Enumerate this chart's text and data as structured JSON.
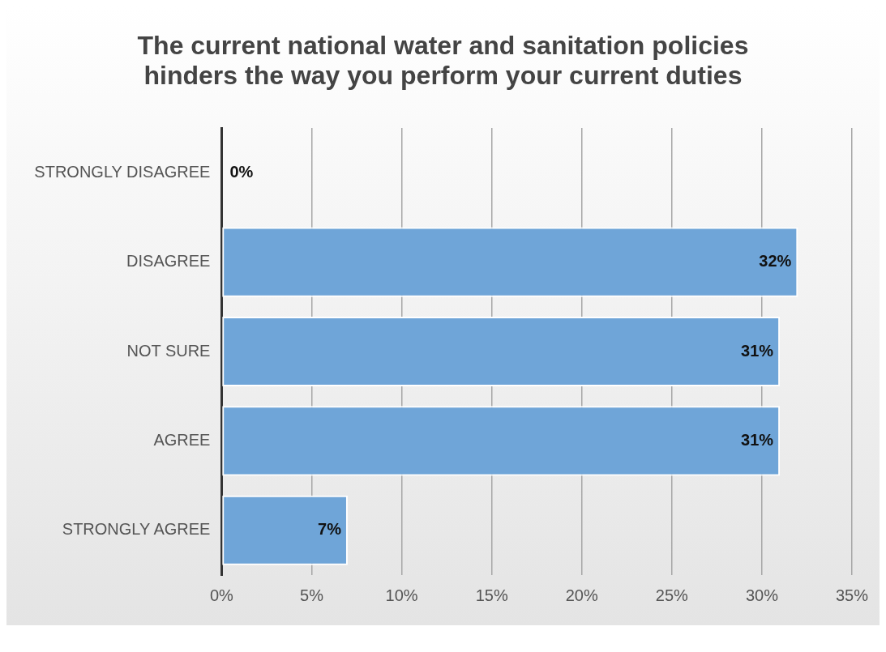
{
  "chart_data": {
    "type": "bar",
    "orientation": "horizontal",
    "title": "The current national water and sanitation policies hinders the way you perform your current duties",
    "categories": [
      "STRONGLY DISAGREE",
      "DISAGREE",
      "NOT SURE",
      "AGREE",
      "STRONGLY AGREE"
    ],
    "values": [
      0,
      32,
      31,
      31,
      7
    ],
    "color": "#6fa5d8",
    "data_labels": true,
    "value_labels": [
      "0%",
      "32%",
      "31%",
      "31%",
      "7%"
    ],
    "xlim": [
      0,
      35
    ],
    "xticks": [
      {
        "value": 0,
        "label": "0%"
      },
      {
        "value": 5,
        "label": "5%"
      },
      {
        "value": 10,
        "label": "10%"
      },
      {
        "value": 15,
        "label": "15%"
      },
      {
        "value": 20,
        "label": "20%"
      },
      {
        "value": 25,
        "label": "25%"
      },
      {
        "value": 30,
        "label": "30%"
      },
      {
        "value": 35,
        "label": "35%"
      }
    ],
    "grid": "x",
    "legend": false
  }
}
